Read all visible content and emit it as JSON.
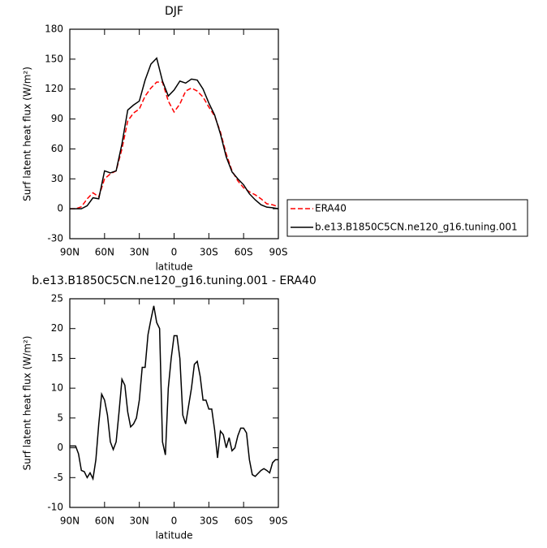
{
  "chart_data": [
    {
      "type": "line",
      "title": "DJF",
      "ylabel": "Surf latent heat flux (W/m²)",
      "xlabel": "latitude",
      "x": [
        90,
        85,
        80,
        75,
        70,
        65,
        60,
        55,
        50,
        45,
        40,
        35,
        30,
        25,
        20,
        15,
        10,
        5,
        0,
        -5,
        -10,
        -15,
        -20,
        -25,
        -30,
        -35,
        -40,
        -45,
        -50,
        -55,
        -60,
        -65,
        -70,
        -75,
        -80,
        -85,
        -90
      ],
      "xlim": [
        90,
        -90
      ],
      "xticks": [
        {
          "value": 90,
          "label": "90N"
        },
        {
          "value": 60,
          "label": "60N"
        },
        {
          "value": 30,
          "label": "30N"
        },
        0,
        {
          "value": -30,
          "label": "30S"
        },
        {
          "value": -60,
          "label": "60S"
        },
        {
          "value": -90,
          "label": "90S"
        }
      ],
      "ylim": [
        -30,
        180
      ],
      "yticks": [
        -30,
        0,
        30,
        60,
        90,
        120,
        150,
        180
      ],
      "legend": "right",
      "series": [
        {
          "name": "ERA40",
          "color": "#ff0000",
          "linestyle": "dashed",
          "values": [
            0,
            0,
            2,
            10,
            16,
            12,
            30,
            35,
            38,
            60,
            88,
            96,
            100,
            113,
            121,
            127,
            127,
            108,
            97,
            105,
            118,
            121,
            118,
            112,
            102,
            93,
            77,
            55,
            38,
            28,
            21,
            17,
            14,
            10,
            5,
            4,
            2
          ]
        },
        {
          "name": "b.e13.B1850C5CN.ne120_g16.tuning.001",
          "color": "#000000",
          "linestyle": "solid",
          "values": [
            0,
            0,
            0,
            3,
            11,
            10,
            38,
            36,
            38,
            65,
            99,
            104,
            108,
            129,
            145,
            151,
            128,
            113,
            119,
            128,
            126,
            130,
            129,
            120,
            106,
            94,
            75,
            52,
            37,
            30,
            24,
            15,
            9,
            4,
            1.6,
            1,
            0
          ]
        }
      ]
    },
    {
      "type": "line",
      "title": "b.e13.B1850C5CN.ne120_g16.tuning.001 - ERA40",
      "ylabel": "Surf latent heat flux (W/m²)",
      "xlabel": "latitude",
      "x": [
        90,
        87.5,
        85,
        82.5,
        80,
        77.5,
        75,
        72.5,
        70,
        67.5,
        65,
        62.5,
        60,
        57.5,
        55,
        52.5,
        50,
        47.5,
        45,
        42.5,
        40,
        37.5,
        35,
        32.5,
        30,
        27.5,
        25,
        22.5,
        20,
        17.5,
        15,
        12.5,
        10,
        7.5,
        5,
        2.5,
        0,
        -2.5,
        -5,
        -7.5,
        -10,
        -12.5,
        -15,
        -17.5,
        -20,
        -22.5,
        -25,
        -27.5,
        -30,
        -32.5,
        -35,
        -37.5,
        -40,
        -42.5,
        -45,
        -47.5,
        -50,
        -52.5,
        -55,
        -57.5,
        -60,
        -62.5,
        -65,
        -67.5,
        -70,
        -72.5,
        -75,
        -77.5,
        -80,
        -82.5,
        -85,
        -87.5,
        -90
      ],
      "xlim": [
        90,
        -90
      ],
      "xticks": [
        {
          "value": 90,
          "label": "90N"
        },
        {
          "value": 60,
          "label": "60N"
        },
        {
          "value": 30,
          "label": "30N"
        },
        0,
        {
          "value": -30,
          "label": "30S"
        },
        {
          "value": -60,
          "label": "60S"
        },
        {
          "value": -90,
          "label": "90S"
        }
      ],
      "ylim": [
        -10,
        25
      ],
      "yticks": [
        -10,
        -5,
        0,
        5,
        10,
        15,
        20,
        25
      ],
      "series": [
        {
          "color": "#000000",
          "linestyle": "solid",
          "values": [
            0.3,
            0.3,
            0.3,
            -1,
            -3.8,
            -4,
            -5,
            -4.2,
            -5.2,
            -2,
            4,
            9,
            8,
            5.5,
            1,
            -0.3,
            1,
            6,
            11.5,
            10.5,
            6,
            3.5,
            4,
            5,
            8,
            13.5,
            13.5,
            19,
            21.5,
            23.8,
            21,
            20,
            1,
            -1.2,
            10,
            15,
            18.8,
            18.8,
            15,
            5.5,
            4,
            7,
            10,
            14,
            14.5,
            12,
            8,
            8,
            6.5,
            6.5,
            3,
            -1.7,
            2.8,
            2.2,
            0,
            1.7,
            -0.5,
            0,
            2,
            3.3,
            3.3,
            2.5,
            -2,
            -4.5,
            -4.8,
            -4.3,
            -3.8,
            -3.5,
            -3.8,
            -4.2,
            -2.5,
            -2,
            -2
          ]
        }
      ]
    }
  ]
}
